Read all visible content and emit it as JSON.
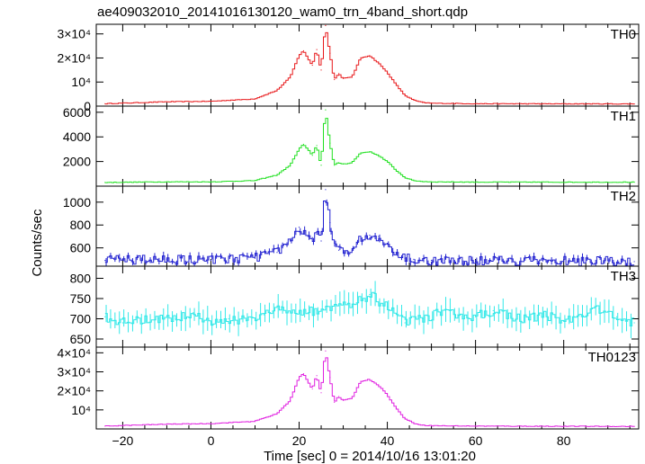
{
  "title": "ae409032010_20141016130120_wam0_trn_4band_short.qdp",
  "chart_data": {
    "type": "line",
    "title": "ae409032010_20141016130120_wam0_trn_4band_short.qdp",
    "xlabel": "Time [sec] 0 = 2014/10/16 13:01:20",
    "ylabel": "Counts/sec",
    "xlim": [
      -26,
      97
    ],
    "x_ticks": [
      -20,
      0,
      20,
      40,
      60,
      80
    ],
    "x_tick_labels": [
      "−20",
      "0",
      "20",
      "40",
      "60",
      "80"
    ],
    "grid": false,
    "panels": [
      {
        "name": "TH0",
        "color": "#e8191b",
        "ylim": [
          0,
          34000
        ],
        "y_ticks": [
          0,
          10000,
          20000,
          30000
        ],
        "y_tick_labels": [
          "0",
          "10⁴",
          "2×10⁴",
          "3×10⁴"
        ],
        "error_bars": false,
        "x": [
          -24,
          -10,
          0,
          10,
          15,
          18,
          20,
          21,
          22,
          23,
          24,
          25,
          26,
          27,
          28,
          29,
          30,
          32,
          34,
          36,
          38,
          40,
          42,
          44,
          46,
          48,
          50,
          60,
          96
        ],
        "y": [
          1000,
          1800,
          2000,
          3000,
          6500,
          12000,
          21000,
          23000,
          20000,
          17000,
          23500,
          15000,
          33500,
          22000,
          11000,
          13500,
          11500,
          12000,
          20000,
          21000,
          18000,
          14000,
          9000,
          4500,
          2500,
          1500,
          1200,
          1000,
          900
        ]
      },
      {
        "name": "TH1",
        "color": "#20e020",
        "ylim": [
          0,
          6500
        ],
        "y_ticks": [
          2000,
          4000,
          6000
        ],
        "y_tick_labels": [
          "2000",
          "4000",
          "6000"
        ],
        "error_bars": false,
        "x": [
          -24,
          -10,
          0,
          10,
          15,
          18,
          20,
          21,
          22,
          23,
          24,
          25,
          26,
          27,
          28,
          29,
          30,
          32,
          34,
          36,
          38,
          40,
          42,
          44,
          46,
          48,
          50,
          60,
          96
        ],
        "y": [
          300,
          350,
          350,
          450,
          900,
          1700,
          3000,
          3400,
          3000,
          2500,
          3300,
          1700,
          6200,
          3500,
          1700,
          1900,
          1800,
          1900,
          2700,
          2800,
          2500,
          2000,
          1300,
          700,
          450,
          380,
          350,
          330,
          320
        ]
      },
      {
        "name": "TH2",
        "color": "#2020d0",
        "ylim": [
          440,
          1140
        ],
        "y_ticks": [
          600,
          800,
          1000
        ],
        "y_tick_labels": [
          "600",
          "800",
          "1000"
        ],
        "error_bars": true,
        "x": [
          -24,
          -10,
          0,
          10,
          15,
          18,
          20,
          21,
          22,
          23,
          24,
          25,
          26,
          27,
          28,
          29,
          30,
          32,
          34,
          36,
          38,
          40,
          42,
          44,
          46,
          48,
          50,
          60,
          96
        ],
        "y": [
          490,
          500,
          490,
          510,
          560,
          660,
          780,
          720,
          700,
          690,
          720,
          660,
          1110,
          820,
          620,
          580,
          560,
          580,
          680,
          710,
          700,
          640,
          560,
          510,
          500,
          490,
          490,
          490,
          480
        ]
      },
      {
        "name": "TH3",
        "color": "#30e8e8",
        "ylim": [
          630,
          830
        ],
        "y_ticks": [
          650,
          700,
          750,
          800
        ],
        "y_tick_labels": [
          "650",
          "700",
          "750",
          "800"
        ],
        "error_bars": true,
        "x": [
          -24,
          -20,
          -16,
          -12,
          -8,
          -4,
          0,
          4,
          8,
          12,
          16,
          20,
          24,
          28,
          32,
          36,
          40,
          44,
          48,
          52,
          56,
          60,
          64,
          68,
          72,
          76,
          80,
          84,
          88,
          92,
          96
        ],
        "y": [
          705,
          690,
          695,
          700,
          700,
          715,
          690,
          700,
          695,
          710,
          730,
          715,
          720,
          735,
          730,
          760,
          730,
          690,
          700,
          715,
          710,
          705,
          720,
          705,
          700,
          710,
          695,
          705,
          725,
          705,
          690
        ]
      },
      {
        "name": "TH0123",
        "color": "#e020e0",
        "ylim": [
          0,
          43000
        ],
        "y_ticks": [
          10000,
          20000,
          30000,
          40000
        ],
        "y_tick_labels": [
          "10⁴",
          "2×10⁴",
          "3×10⁴",
          "4×10⁴"
        ],
        "error_bars": false,
        "x": [
          -24,
          -10,
          0,
          10,
          15,
          18,
          20,
          21,
          22,
          23,
          24,
          25,
          26,
          27,
          28,
          29,
          30,
          32,
          34,
          36,
          38,
          40,
          42,
          44,
          46,
          48,
          50,
          60,
          96
        ],
        "y": [
          1500,
          2500,
          2800,
          4000,
          8000,
          15000,
          27000,
          29000,
          25000,
          21000,
          28000,
          19000,
          41000,
          27000,
          14000,
          17000,
          15000,
          16000,
          25000,
          26000,
          23000,
          18000,
          11000,
          5500,
          3000,
          2000,
          1700,
          1500,
          1300
        ]
      }
    ]
  }
}
